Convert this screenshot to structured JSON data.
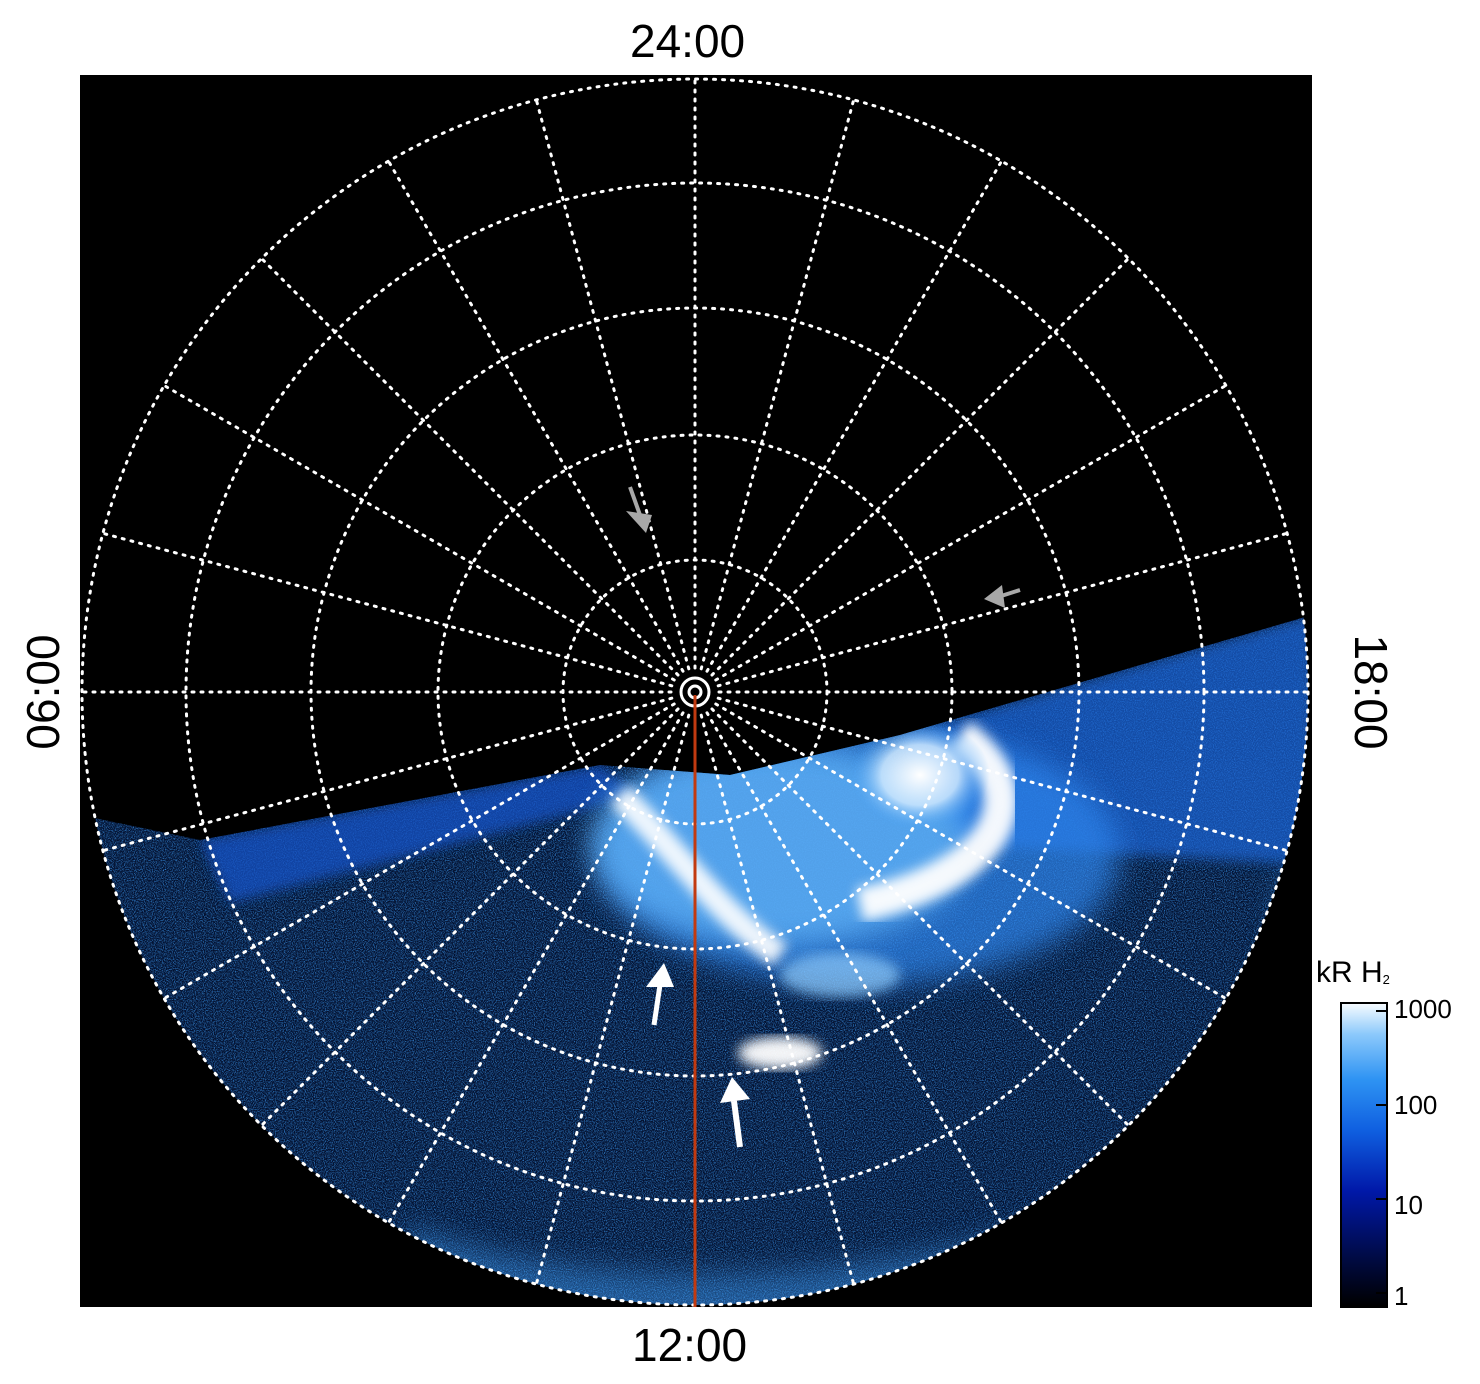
{
  "plot": {
    "labels": {
      "top": "24:00",
      "bottom": "12:00",
      "left": "06:00",
      "right": "18:00"
    },
    "colorbar": {
      "title_main": "kR H",
      "title_sub": "2",
      "ticks": [
        "1000",
        "100",
        "10",
        "1"
      ],
      "scale": "log",
      "colors": [
        "#000000",
        "#000a40",
        "#0018a8",
        "#0f5fe0",
        "#2e93f3",
        "#8cc9fb",
        "#f5fbff"
      ]
    },
    "overlay": {
      "grid_color": "#ffffff",
      "meridian_line_color": "#c23a10",
      "arrow_grey_color": "#a8a8a8",
      "arrow_white_color": "#ffffff"
    }
  }
}
